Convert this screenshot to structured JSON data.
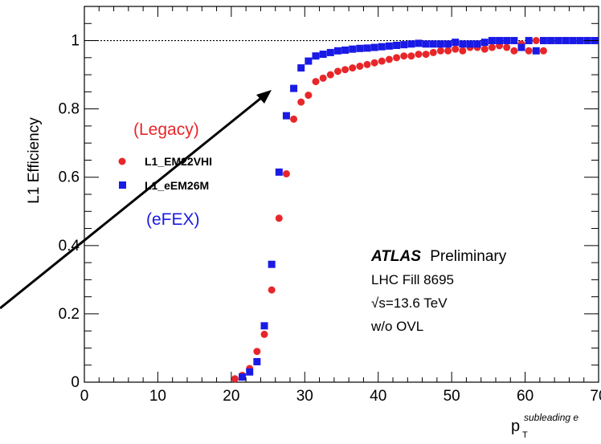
{
  "chart_data": {
    "type": "scatter",
    "ylabel": "L1 Efficiency",
    "xlabel_main": "p",
    "xlabel_sub": "T",
    "xlabel_sup": "subleading e",
    "xlim": [
      0,
      70
    ],
    "ylim": [
      0,
      1.1
    ],
    "xticks": [
      0,
      10,
      20,
      30,
      40,
      50,
      60,
      70
    ],
    "xtick_labels": [
      "0",
      "10",
      "20",
      "30",
      "40",
      "50",
      "60",
      "70"
    ],
    "yticks": [
      0,
      0.2,
      0.4,
      0.6,
      0.8,
      1
    ],
    "ytick_labels": [
      "0",
      "0.2",
      "0.4",
      "0.6",
      "0.8",
      "1"
    ],
    "reference_line": 1,
    "series": [
      {
        "name": "L1_EM22VHI",
        "marker": "circle",
        "color": "#e8262a",
        "x": [
          20.5,
          21.5,
          22.5,
          23.5,
          24.5,
          25.5,
          26.5,
          27.5,
          28.5,
          29.5,
          30.5,
          31.5,
          32.5,
          33.5,
          34.5,
          35.5,
          36.5,
          37.5,
          38.5,
          39.5,
          40.5,
          41.5,
          42.5,
          43.5,
          44.5,
          45.5,
          46.5,
          47.5,
          48.5,
          49.5,
          50.5,
          51.5,
          52.5,
          53.5,
          54.5,
          55.5,
          56.5,
          57.5,
          58.5,
          59.5,
          60.5,
          61.5,
          62.5
        ],
        "y": [
          0.01,
          0.02,
          0.04,
          0.09,
          0.14,
          0.27,
          0.48,
          0.61,
          0.77,
          0.82,
          0.84,
          0.88,
          0.89,
          0.9,
          0.91,
          0.915,
          0.92,
          0.925,
          0.93,
          0.935,
          0.94,
          0.945,
          0.95,
          0.955,
          0.955,
          0.96,
          0.96,
          0.965,
          0.97,
          0.97,
          0.975,
          0.97,
          0.98,
          0.98,
          0.975,
          0.98,
          0.985,
          0.98,
          0.97,
          0.99,
          0.97,
          1.0,
          0.97
        ]
      },
      {
        "name": "L1_eEM26M",
        "marker": "square",
        "color": "#1a1ae6",
        "x": [
          21.5,
          22.5,
          23.5,
          24.5,
          25.5,
          26.5,
          27.5,
          28.5,
          29.5,
          30.5,
          31.5,
          32.5,
          33.5,
          34.5,
          35.5,
          36.5,
          37.5,
          38.5,
          39.5,
          40.5,
          41.5,
          42.5,
          43.5,
          44.5,
          45.5,
          46.5,
          47.5,
          48.5,
          49.5,
          50.5,
          51.5,
          52.5,
          53.5,
          54.5,
          55.5,
          56.5,
          57.5,
          58.5,
          59.5,
          60.5,
          61.5,
          62.5,
          63.5,
          64.5,
          65.5,
          66.5,
          67.5,
          68.5,
          69.5
        ],
        "y": [
          0.015,
          0.03,
          0.06,
          0.165,
          0.345,
          0.615,
          0.78,
          0.86,
          0.92,
          0.94,
          0.955,
          0.96,
          0.965,
          0.97,
          0.972,
          0.975,
          0.977,
          0.978,
          0.98,
          0.982,
          0.984,
          0.986,
          0.988,
          0.99,
          0.992,
          0.99,
          0.99,
          0.99,
          0.99,
          0.995,
          0.99,
          0.99,
          0.99,
          0.995,
          1.0,
          1.0,
          1.0,
          1.0,
          0.98,
          1.0,
          0.97,
          1.0,
          1.0,
          1.0,
          1.0,
          1.0,
          1.0,
          1.0,
          1.0
        ]
      }
    ],
    "annotations": {
      "legacy": "(Legacy)",
      "efex": "(eFEX)",
      "atlas": "ATLAS",
      "preliminary": "Preliminary",
      "fill": "LHC Fill 8695",
      "sqrt": "√s=13.6 TeV",
      "ovl": "w/o OVL"
    }
  }
}
